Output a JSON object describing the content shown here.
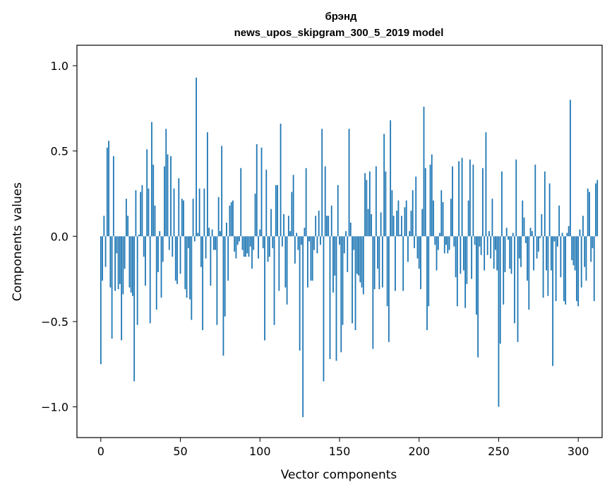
{
  "chart_data": {
    "type": "bar",
    "title": "брэнд",
    "subtitle": "news_upos_skipgram_300_5_2019 model",
    "xlabel": "Vector components",
    "ylabel": "Components values",
    "xlim": [
      -15,
      315
    ],
    "ylim": [
      -1.18,
      1.12
    ],
    "xticks": [
      0,
      50,
      100,
      150,
      200,
      250,
      300
    ],
    "xtick_labels": [
      "0",
      "50",
      "100",
      "150",
      "200",
      "250",
      "300"
    ],
    "yticks": [
      1.0,
      0.5,
      0.0,
      -0.5,
      -1.0
    ],
    "ytick_labels": [
      "1.0",
      "0.5",
      "0.0",
      "−0.5",
      "−1.0"
    ],
    "bar_color": "#1f77b4",
    "values": [
      -0.75,
      -0.26,
      0.12,
      -0.18,
      0.52,
      0.56,
      -0.3,
      -0.6,
      0.47,
      -0.32,
      -0.1,
      -0.31,
      -0.28,
      -0.61,
      -0.34,
      -0.19,
      0.22,
      0.12,
      -0.3,
      -0.33,
      -0.35,
      -0.85,
      0.27,
      -0.52,
      0.01,
      0.26,
      0.3,
      -0.12,
      -0.29,
      0.51,
      0.28,
      -0.51,
      0.67,
      0.42,
      0.18,
      -0.43,
      -0.21,
      0.03,
      -0.36,
      -0.15,
      0.41,
      0.63,
      0.48,
      -0.08,
      0.47,
      -0.12,
      0.28,
      -0.26,
      -0.28,
      0.34,
      -0.22,
      0.22,
      0.21,
      -0.31,
      -0.36,
      -0.07,
      -0.37,
      -0.49,
      0.22,
      -0.03,
      0.93,
      0.02,
      0.28,
      -0.18,
      -0.55,
      0.28,
      -0.13,
      0.61,
      0.05,
      -0.29,
      0.04,
      -0.08,
      -0.08,
      -0.52,
      0.23,
      0.03,
      0.53,
      -0.7,
      -0.47,
      0.08,
      -0.26,
      0.18,
      0.2,
      0.21,
      -0.09,
      -0.13,
      -0.05,
      -0.03,
      0.4,
      -0.08,
      -0.12,
      -0.12,
      -0.1,
      -0.12,
      -0.06,
      -0.19,
      -0.08,
      0.25,
      0.54,
      -0.13,
      0.04,
      0.52,
      -0.07,
      -0.61,
      0.39,
      -0.15,
      -0.12,
      0.16,
      -0.07,
      -0.52,
      0.3,
      0.3,
      -0.32,
      0.66,
      -0.06,
      0.13,
      -0.3,
      -0.4,
      0.12,
      0.03,
      0.26,
      0.36,
      -0.16,
      0.02,
      -0.08,
      -0.67,
      -0.05,
      -1.06,
      0.05,
      0.4,
      -0.3,
      -0.03,
      -0.26,
      -0.26,
      -0.08,
      0.12,
      -0.1,
      0.15,
      -0.05,
      0.63,
      -0.85,
      0.41,
      0.12,
      0.12,
      -0.72,
      0.18,
      -0.33,
      -0.23,
      -0.73,
      0.3,
      -0.05,
      -0.68,
      -0.52,
      -0.1,
      0.03,
      -0.21,
      0.63,
      0.08,
      -0.51,
      -0.08,
      -0.55,
      -0.22,
      -0.23,
      -0.27,
      -0.3,
      -0.34,
      0.37,
      0.33,
      0.16,
      0.38,
      0.13,
      -0.66,
      -0.31,
      0.41,
      -0.19,
      -0.31,
      0.14,
      -0.3,
      0.6,
      0.38,
      -0.41,
      -0.62,
      0.68,
      0.27,
      0.12,
      -0.32,
      0.15,
      0.21,
      0.01,
      0.12,
      -0.32,
      0.17,
      0.21,
      -0.15,
      0.03,
      0.15,
      0.27,
      -0.07,
      0.35,
      -0.13,
      -0.19,
      -0.31,
      0.16,
      0.76,
      0.4,
      -0.55,
      -0.41,
      0.42,
      0.48,
      0.21,
      -0.05,
      -0.2,
      -0.08,
      0.02,
      0.27,
      0.2,
      -0.1,
      -0.05,
      -0.1,
      -0.08,
      0.22,
      0.41,
      -0.06,
      -0.24,
      -0.41,
      0.44,
      -0.22,
      0.46,
      -0.2,
      -0.42,
      -0.28,
      0.21,
      0.45,
      -0.25,
      0.42,
      -0.05,
      -0.46,
      -0.71,
      -0.06,
      -0.11,
      0.4,
      -0.2,
      0.61,
      -0.11,
      0.03,
      -0.13,
      0.22,
      -0.19,
      -0.08,
      -0.2,
      -1.0,
      -0.63,
      0.38,
      -0.4,
      -0.21,
      0.05,
      -0.02,
      -0.19,
      -0.22,
      0.02,
      -0.51,
      0.45,
      -0.62,
      -0.13,
      -0.18,
      0.21,
      0.11,
      -0.04,
      -0.26,
      -0.43,
      0.05,
      0.03,
      -0.2,
      0.42,
      -0.13,
      -0.09,
      -0.01,
      0.13,
      -0.36,
      0.38,
      -0.2,
      -0.35,
      0.31,
      -0.2,
      -0.76,
      -0.03,
      -0.38,
      -0.06,
      0.18,
      -0.24,
      0.02,
      -0.38,
      -0.4,
      0.02,
      0.06,
      0.8,
      -0.14,
      -0.17,
      -0.2,
      -0.38,
      -0.41,
      0.04,
      -0.3,
      0.12,
      -0.18,
      -0.26,
      0.28,
      0.26,
      -0.15,
      -0.07,
      -0.38,
      0.31,
      0.33
    ]
  }
}
